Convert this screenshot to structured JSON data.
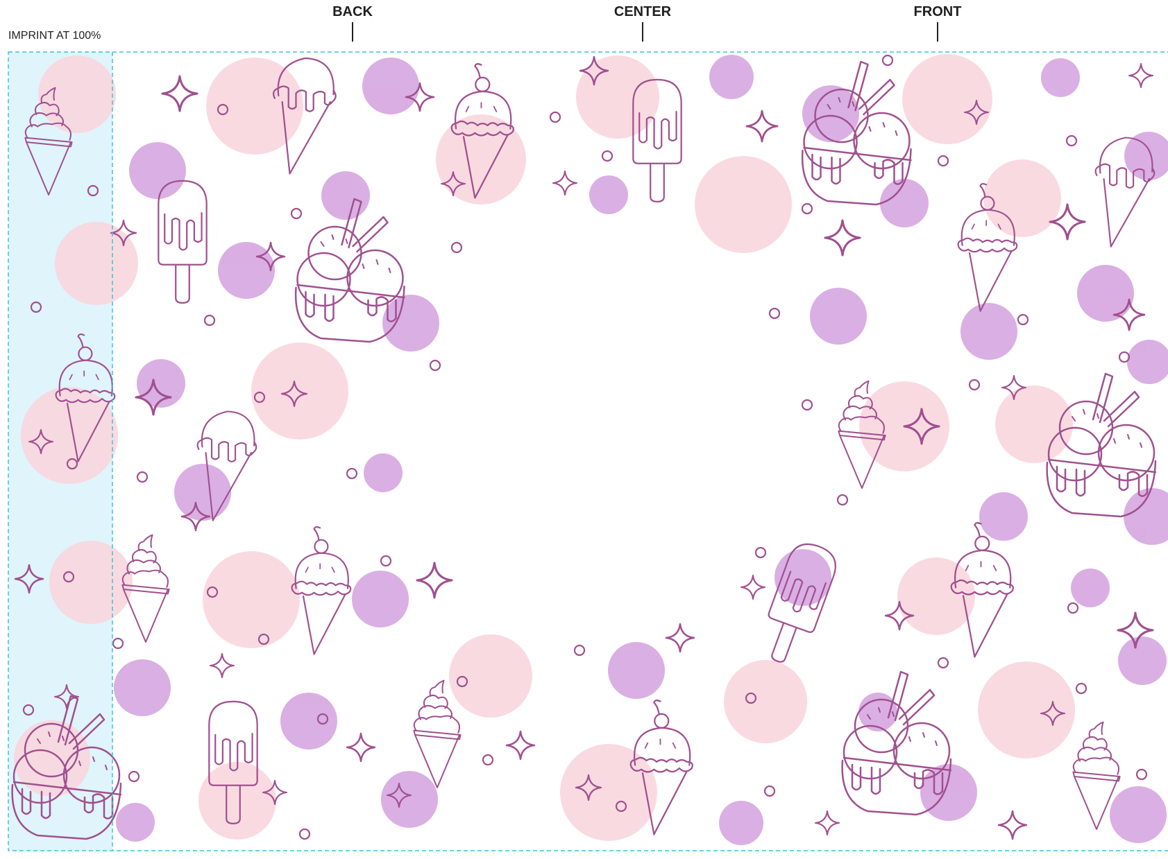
{
  "header": {
    "imprint_label": "IMPRINT AT 100%",
    "positions": [
      "BACK",
      "CENTER",
      "FRONT"
    ]
  },
  "palette": {
    "background": "#ffffff",
    "pink": "#f9d6de",
    "purple": "#d6a6e0",
    "line": "#a0508f",
    "bleed_fill": "#dff4fb",
    "guide_dash": "#3cc4d8"
  },
  "motifs": [
    "swirl-cone-icon",
    "scoop-cone-icon",
    "cherry-cone-icon",
    "popsicle-icon",
    "sundae-bowl-icon",
    "sparkle-icon",
    "ring-dot-icon"
  ]
}
